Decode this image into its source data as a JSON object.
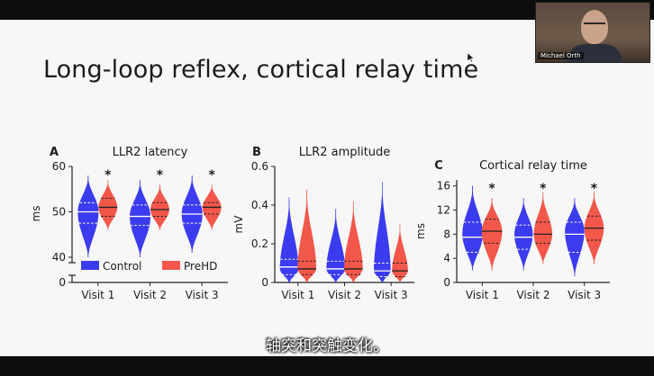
{
  "slide": {
    "title": "Long-loop reflex, cortical relay time",
    "presenter_name": "Michael Orth",
    "subtitle": "轴突和突触变化。"
  },
  "colors": {
    "control": "#3b3bf0",
    "prehd": "#f2574a",
    "background": "#f7f7f7",
    "axis": "#222222"
  },
  "legend": {
    "control_label": "Control",
    "prehd_label": "PreHD"
  },
  "chart_data": [
    {
      "panel_letter": "A",
      "type": "violin",
      "title": "LLR2 latency",
      "xlabel": "",
      "ylabel": "ms",
      "ylim": [
        0,
        60
      ],
      "axis_break": true,
      "yticks": [
        0,
        40,
        50,
        60
      ],
      "categories": [
        "Visit 1",
        "Visit 2",
        "Visit 3"
      ],
      "significance": [
        "*",
        "*",
        "*"
      ],
      "series": [
        {
          "name": "Control",
          "groups": [
            {
              "min": 40,
              "max": 58,
              "q1": 47.5,
              "median": 50,
              "q3": 52,
              "mode": 50,
              "halfwidth": 1.0
            },
            {
              "min": 40,
              "max": 57,
              "q1": 47,
              "median": 49,
              "q3": 51.5,
              "mode": 49,
              "halfwidth": 1.0
            },
            {
              "min": 41,
              "max": 58,
              "q1": 47.5,
              "median": 49.5,
              "q3": 51.5,
              "mode": 49.5,
              "halfwidth": 1.0
            }
          ]
        },
        {
          "name": "PreHD",
          "groups": [
            {
              "min": 46,
              "max": 57,
              "q1": 49,
              "median": 51,
              "q3": 53,
              "mode": 51,
              "halfwidth": 0.9
            },
            {
              "min": 46,
              "max": 56,
              "q1": 49,
              "median": 50.5,
              "q3": 52,
              "mode": 50.5,
              "halfwidth": 0.9
            },
            {
              "min": 46,
              "max": 56,
              "q1": 49.5,
              "median": 51,
              "q3": 52,
              "mode": 51,
              "halfwidth": 0.9
            }
          ]
        }
      ]
    },
    {
      "panel_letter": "B",
      "type": "violin",
      "title": "LLR2 amplitude",
      "xlabel": "",
      "ylabel": "mV",
      "ylim": [
        0,
        0.6
      ],
      "axis_break": false,
      "yticks": [
        0,
        0.2,
        0.4,
        0.6
      ],
      "categories": [
        "Visit 1",
        "Visit 2",
        "Visit 3"
      ],
      "significance": [
        "",
        "",
        ""
      ],
      "series": [
        {
          "name": "Control",
          "groups": [
            {
              "min": 0,
              "max": 0.44,
              "q1": 0.04,
              "median": 0.08,
              "q3": 0.12,
              "mode": 0.07,
              "halfwidth": 1.0
            },
            {
              "min": 0,
              "max": 0.38,
              "q1": 0.04,
              "median": 0.07,
              "q3": 0.11,
              "mode": 0.07,
              "halfwidth": 1.0
            },
            {
              "min": 0,
              "max": 0.52,
              "q1": 0.03,
              "median": 0.06,
              "q3": 0.1,
              "mode": 0.06,
              "halfwidth": 0.9
            }
          ]
        },
        {
          "name": "PreHD",
          "groups": [
            {
              "min": 0,
              "max": 0.48,
              "q1": 0.04,
              "median": 0.07,
              "q3": 0.11,
              "mode": 0.07,
              "halfwidth": 1.0
            },
            {
              "min": 0,
              "max": 0.42,
              "q1": 0.04,
              "median": 0.07,
              "q3": 0.11,
              "mode": 0.07,
              "halfwidth": 1.0
            },
            {
              "min": 0,
              "max": 0.3,
              "q1": 0.03,
              "median": 0.06,
              "q3": 0.1,
              "mode": 0.06,
              "halfwidth": 0.85
            }
          ]
        }
      ]
    },
    {
      "panel_letter": "C",
      "type": "violin",
      "title": "Cortical relay time",
      "xlabel": "",
      "ylabel": "ms",
      "ylim": [
        0,
        17
      ],
      "axis_break": false,
      "yticks": [
        0,
        4,
        8,
        12,
        16
      ],
      "categories": [
        "Visit 1",
        "Visit 2",
        "Visit 3"
      ],
      "significance": [
        "*",
        "*",
        "*"
      ],
      "series": [
        {
          "name": "Control",
          "groups": [
            {
              "min": 2,
              "max": 16,
              "q1": 5,
              "median": 7.5,
              "q3": 10,
              "mode": 8,
              "halfwidth": 1.0
            },
            {
              "min": 2,
              "max": 14,
              "q1": 5.5,
              "median": 7.5,
              "q3": 9.5,
              "mode": 8,
              "halfwidth": 0.9
            },
            {
              "min": 1,
              "max": 14,
              "q1": 5,
              "median": 8,
              "q3": 10,
              "mode": 8.5,
              "halfwidth": 0.95
            }
          ]
        },
        {
          "name": "PreHD",
          "groups": [
            {
              "min": 2,
              "max": 14,
              "q1": 6.5,
              "median": 8.5,
              "q3": 10.5,
              "mode": 8.5,
              "halfwidth": 1.0
            },
            {
              "min": 3,
              "max": 15,
              "q1": 6.5,
              "median": 8,
              "q3": 10,
              "mode": 8,
              "halfwidth": 0.9
            },
            {
              "min": 3,
              "max": 15,
              "q1": 7,
              "median": 9,
              "q3": 11,
              "mode": 9,
              "halfwidth": 0.95
            }
          ]
        }
      ]
    }
  ]
}
